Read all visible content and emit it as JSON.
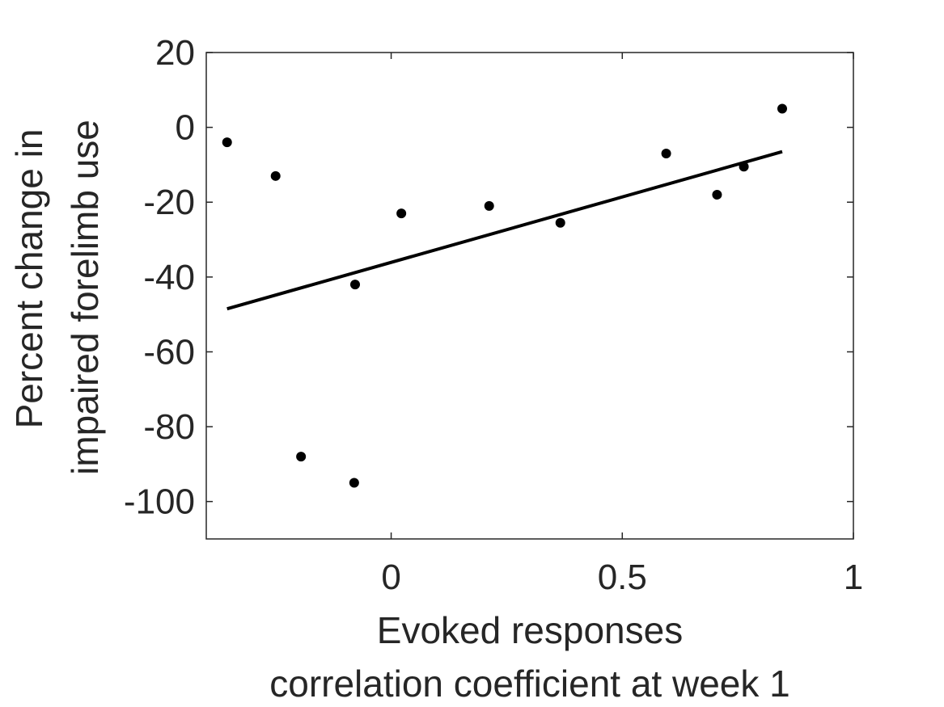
{
  "chart_data": {
    "type": "scatter",
    "xlabel_lines": [
      "Evoked responses",
      "correlation coefficient at week 1"
    ],
    "ylabel_lines": [
      "Percent change in",
      "impaired forelimb use"
    ],
    "xlim": [
      -0.4,
      1
    ],
    "ylim": [
      -110,
      20
    ],
    "xticks": [
      0,
      0.5,
      1
    ],
    "xtick_labels": [
      "0",
      "0.5",
      "1"
    ],
    "yticks": [
      20,
      0,
      -20,
      -40,
      -60,
      -80,
      -100
    ],
    "ytick_labels": [
      "20",
      "0",
      "-20",
      "-40",
      "-60",
      "-80",
      "-100"
    ],
    "grid": false,
    "box": true,
    "series": [
      {
        "type": "scatter",
        "color": "#000000",
        "points": [
          {
            "x": -0.355,
            "y": -4
          },
          {
            "x": -0.25,
            "y": -13
          },
          {
            "x": -0.195,
            "y": -88
          },
          {
            "x": -0.08,
            "y": -95
          },
          {
            "x": -0.078,
            "y": -42
          },
          {
            "x": 0.022,
            "y": -23
          },
          {
            "x": 0.212,
            "y": -21
          },
          {
            "x": 0.366,
            "y": -25.5
          },
          {
            "x": 0.595,
            "y": -7
          },
          {
            "x": 0.705,
            "y": -18
          },
          {
            "x": 0.763,
            "y": -10.5
          },
          {
            "x": 0.846,
            "y": 5
          }
        ]
      },
      {
        "type": "line",
        "color": "#000000",
        "points": [
          {
            "x": -0.355,
            "y": -48.5
          },
          {
            "x": 0.846,
            "y": -6.5
          }
        ]
      }
    ]
  }
}
